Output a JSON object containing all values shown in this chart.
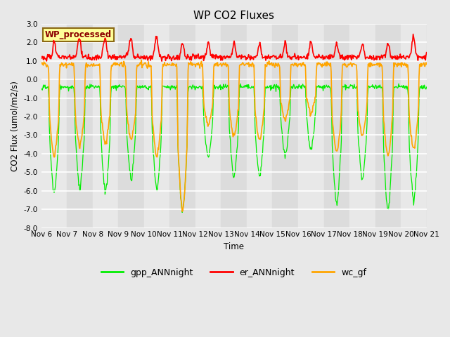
{
  "title": "WP CO2 Fluxes",
  "xlabel": "Time",
  "ylabel_display": "CO2 Flux (umol/m2/s)",
  "ylim": [
    -8.0,
    3.0
  ],
  "yticks": [
    -8.0,
    -7.0,
    -6.0,
    -5.0,
    -4.0,
    -3.0,
    -2.0,
    -1.0,
    0.0,
    1.0,
    2.0,
    3.0
  ],
  "xtick_labels": [
    "Nov 6",
    "Nov 7",
    "Nov 8",
    "Nov 9",
    "Nov 10",
    "Nov 11",
    "Nov 12",
    "Nov 13",
    "Nov 14",
    "Nov 15",
    "Nov 16",
    "Nov 17",
    "Nov 18",
    "Nov 19",
    "Nov 20",
    "Nov 21"
  ],
  "color_gpp": "#00EE00",
  "color_er": "#FF0000",
  "color_wc": "#FFA500",
  "lw_gpp": 0.9,
  "lw_er": 1.2,
  "lw_wc": 1.2,
  "label_gpp": "gpp_ANNnight",
  "label_er": "er_ANNnight",
  "label_wc": "wc_gf",
  "watermark_text": "WP_processed",
  "watermark_color": "#8B0000",
  "watermark_bg": "#FFFF99",
  "watermark_border": "#8B6914",
  "fig_bg": "#E8E8E8",
  "plot_bg": "#DCDCDC",
  "band_light": "#E8E8E8",
  "band_dark": "#DCDCDC",
  "n_days": 15,
  "pts_per_day": 48,
  "title_fontsize": 11,
  "legend_fontsize": 9,
  "tick_fontsize": 7.5
}
